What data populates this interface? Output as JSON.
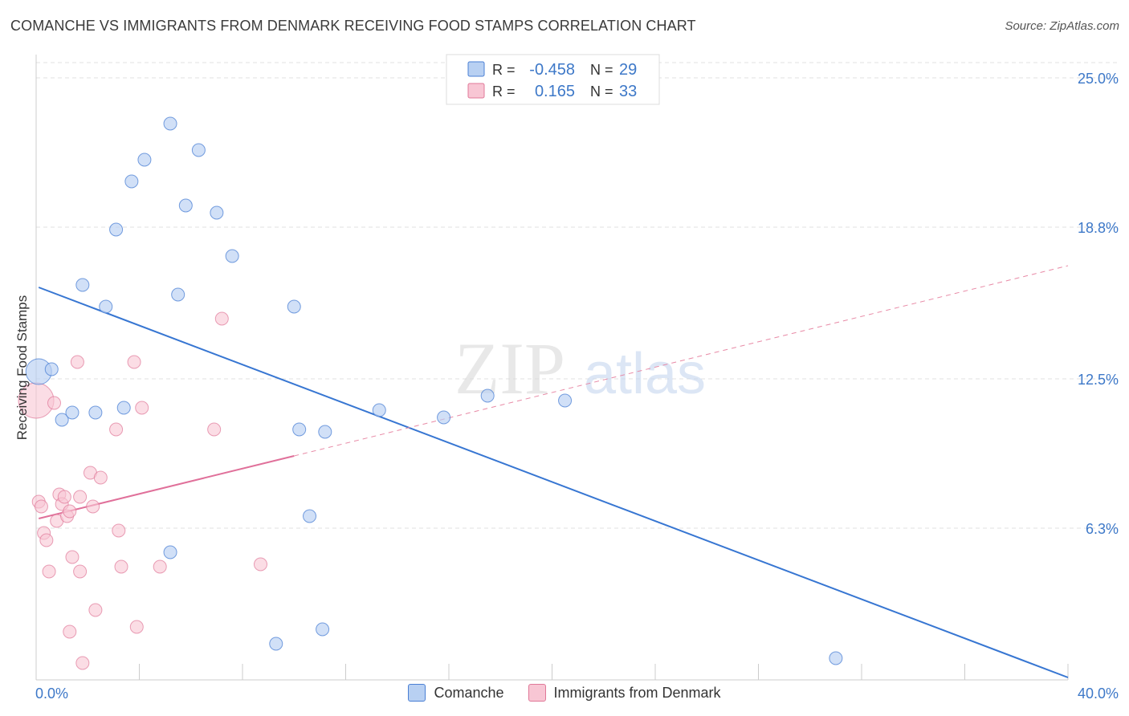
{
  "header": {
    "title": "COMANCHE VS IMMIGRANTS FROM DENMARK RECEIVING FOOD STAMPS CORRELATION CHART",
    "source": "Source: ZipAtlas.com"
  },
  "watermark": {
    "zip": "ZIP",
    "atlas": "atlas"
  },
  "stats": [
    {
      "r_label": "R =",
      "r": "-0.458",
      "n_label": "N =",
      "n": "29"
    },
    {
      "r_label": "R =",
      "r": "0.165",
      "n_label": "N =",
      "n": "33"
    }
  ],
  "chart_data": {
    "type": "scatter",
    "title": "COMANCHE VS IMMIGRANTS FROM DENMARK RECEIVING FOOD STAMPS CORRELATION CHART",
    "xlabel": "",
    "ylabel": "Receiving Food Stamps",
    "xlim": [
      0,
      40
    ],
    "ylim": [
      0,
      25.0
    ],
    "x_tick_labels": [
      "0.0%",
      "40.0%"
    ],
    "y_tick_labels": [
      "25.0%",
      "18.8%",
      "12.5%",
      "6.3%"
    ],
    "y_ticks": [
      25.0,
      18.8,
      12.5,
      6.3
    ],
    "grid": true,
    "legend_position": "bottom",
    "colors": {
      "comanche": "#4a7fd4",
      "denmark": "#e07898",
      "comanche_fill": "#b8d0f2",
      "denmark_fill": "#f8c6d4",
      "axis_label": "#3d78c8"
    },
    "series": [
      {
        "name": "Comanche",
        "points": [
          [
            0.1,
            12.8
          ],
          [
            0.6,
            12.9
          ],
          [
            1.0,
            10.8
          ],
          [
            1.4,
            11.1
          ],
          [
            1.8,
            16.4
          ],
          [
            2.3,
            11.1
          ],
          [
            2.7,
            15.5
          ],
          [
            3.1,
            18.7
          ],
          [
            3.4,
            11.3
          ],
          [
            3.7,
            20.7
          ],
          [
            4.2,
            21.6
          ],
          [
            5.2,
            5.3
          ],
          [
            5.2,
            23.1
          ],
          [
            5.5,
            16.0
          ],
          [
            5.8,
            19.7
          ],
          [
            6.3,
            22.0
          ],
          [
            7.0,
            19.4
          ],
          [
            7.6,
            17.6
          ],
          [
            9.3,
            1.5
          ],
          [
            10.0,
            15.5
          ],
          [
            10.2,
            10.4
          ],
          [
            10.6,
            6.8
          ],
          [
            11.1,
            2.1
          ],
          [
            11.2,
            10.3
          ],
          [
            13.3,
            11.2
          ],
          [
            15.8,
            10.9
          ],
          [
            17.5,
            11.8
          ],
          [
            20.5,
            11.6
          ],
          [
            31.0,
            0.9
          ]
        ],
        "trend": [
          [
            0.1,
            16.3
          ],
          [
            40.0,
            0.1
          ]
        ]
      },
      {
        "name": "Immigrants from Denmark",
        "points": [
          [
            0.0,
            11.6
          ],
          [
            0.1,
            7.4
          ],
          [
            0.2,
            7.2
          ],
          [
            0.3,
            6.1
          ],
          [
            0.4,
            5.8
          ],
          [
            0.5,
            4.5
          ],
          [
            0.7,
            11.5
          ],
          [
            0.8,
            6.6
          ],
          [
            0.9,
            7.7
          ],
          [
            1.0,
            7.3
          ],
          [
            1.1,
            7.6
          ],
          [
            1.2,
            6.8
          ],
          [
            1.3,
            7.0
          ],
          [
            1.3,
            2.0
          ],
          [
            1.4,
            5.1
          ],
          [
            1.6,
            13.2
          ],
          [
            1.7,
            7.6
          ],
          [
            1.7,
            4.5
          ],
          [
            1.8,
            0.7
          ],
          [
            2.1,
            8.6
          ],
          [
            2.2,
            7.2
          ],
          [
            2.3,
            2.9
          ],
          [
            2.5,
            8.4
          ],
          [
            3.1,
            10.4
          ],
          [
            3.2,
            6.2
          ],
          [
            3.3,
            4.7
          ],
          [
            3.8,
            13.2
          ],
          [
            3.9,
            2.2
          ],
          [
            4.1,
            11.3
          ],
          [
            4.8,
            4.7
          ],
          [
            6.9,
            10.4
          ],
          [
            7.2,
            15.0
          ],
          [
            8.7,
            4.8
          ]
        ],
        "trend": [
          [
            0.1,
            6.7
          ],
          [
            10.0,
            9.3
          ]
        ],
        "trend_extended": [
          [
            10.0,
            9.3
          ],
          [
            40.0,
            17.2
          ]
        ]
      }
    ]
  }
}
